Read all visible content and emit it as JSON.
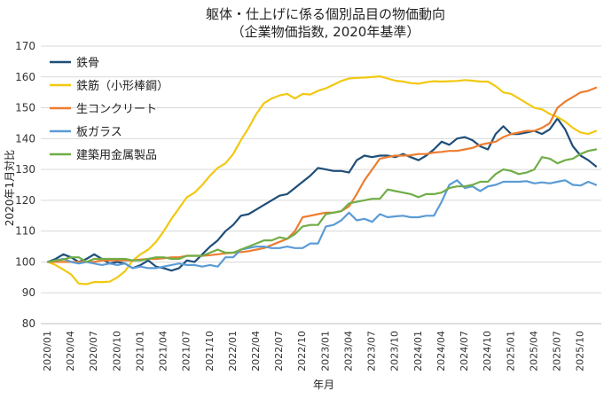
{
  "chart_data": {
    "type": "line",
    "title": "躯体・仕上げに係る個別品目の物価動向",
    "subtitle": "（企業物価指数, 2020年基準）",
    "xlabel": "年月",
    "ylabel": "2020年1月対比",
    "ylim": [
      80,
      170
    ],
    "yticks": [
      80,
      90,
      100,
      110,
      120,
      130,
      140,
      150,
      160,
      170
    ],
    "grid": "horizontal",
    "legend_position": "top-left",
    "x": [
      "2020/01",
      "2020/02",
      "2020/03",
      "2020/04",
      "2020/05",
      "2020/06",
      "2020/07",
      "2020/08",
      "2020/09",
      "2020/10",
      "2020/11",
      "2020/12",
      "2021/01",
      "2021/02",
      "2021/03",
      "2021/04",
      "2021/05",
      "2021/06",
      "2021/07",
      "2021/08",
      "2021/09",
      "2021/10",
      "2021/11",
      "2021/12",
      "2022/01",
      "2022/02",
      "2022/03",
      "2022/04",
      "2022/05",
      "2022/06",
      "2022/07",
      "2022/08",
      "2022/09",
      "2022/10",
      "2022/11",
      "2022/12",
      "2023/01",
      "2023/02",
      "2023/03",
      "2023/04",
      "2023/05",
      "2023/06",
      "2023/07",
      "2023/08",
      "2023/09",
      "2023/10",
      "2023/11",
      "2023/12",
      "2024/01",
      "2024/02",
      "2024/03",
      "2024/04",
      "2024/05",
      "2024/06",
      "2024/07",
      "2024/08",
      "2024/09",
      "2024/10",
      "2024/11",
      "2024/12",
      "2025/01",
      "2025/02",
      "2025/03",
      "2025/04",
      "2025/05",
      "2025/06",
      "2025/07",
      "2025/08",
      "2025/09",
      "2025/10",
      "2025/11",
      "2025/12"
    ],
    "xtick_labels": [
      "2020/01",
      "2020/04",
      "2020/07",
      "2020/10",
      "2021/01",
      "2021/04",
      "2021/07",
      "2021/10",
      "2022/01",
      "2022/04",
      "2022/07",
      "2022/10",
      "2023/01",
      "2023/04",
      "2023/07",
      "2023/10",
      "2024/01",
      "2024/04",
      "2024/07",
      "2024/10",
      "2025/01",
      "2025/04",
      "2025/07",
      "2025/10"
    ],
    "series": [
      {
        "name": "鉄骨",
        "color": "#1f4e79",
        "values": [
          100,
          101,
          102.5,
          101.5,
          100,
          101,
          102.5,
          101,
          99.5,
          100,
          99.5,
          98,
          99,
          100.5,
          98.5,
          98,
          97.2,
          98,
          100.5,
          100,
          102.5,
          105,
          107,
          110,
          112,
          115,
          115.5,
          117,
          118.5,
          120,
          121.5,
          122,
          124,
          126,
          128,
          130.5,
          130,
          129.5,
          129.5,
          129,
          133,
          134.5,
          134,
          134.5,
          134.5,
          134,
          135,
          134,
          133,
          134.5,
          136.5,
          139,
          138,
          140,
          140.5,
          139.5,
          137.5,
          136.5,
          141.5,
          144,
          141.5,
          141.5,
          142,
          142.5,
          141.5,
          143,
          146.5,
          143,
          137.5,
          134.5,
          133,
          131
        ]
      },
      {
        "name": "鉄筋（小形棒鋼）",
        "color": "#f2c811",
        "values": [
          100,
          99,
          97.5,
          96,
          93,
          92.8,
          93.5,
          93.5,
          93.6,
          95,
          97,
          100.5,
          102.5,
          104,
          106.5,
          110,
          114,
          117.5,
          121,
          122.5,
          125,
          128,
          130.5,
          132,
          135,
          139.5,
          143.5,
          148,
          151.5,
          153,
          154,
          154.5,
          153,
          154.5,
          154.3,
          155.5,
          156.3,
          157.5,
          158.7,
          159.5,
          159.7,
          159.8,
          160,
          160.2,
          159.5,
          158.8,
          158.5,
          158,
          157.8,
          158.3,
          158.6,
          158.5,
          158.6,
          158.7,
          159,
          158.8,
          158.5,
          158.5,
          157,
          155,
          154.5,
          153,
          151.5,
          150,
          149.5,
          148,
          147,
          145.5,
          143.5,
          142,
          141.5,
          142.5
        ]
      },
      {
        "name": "生コンクリート",
        "color": "#ed7d31",
        "values": [
          100,
          100,
          100,
          100,
          100,
          100,
          100,
          100.5,
          100.5,
          100.5,
          100.5,
          100.5,
          100.8,
          101,
          101,
          101.2,
          101.5,
          101.5,
          102,
          102,
          102,
          102.2,
          102.5,
          102.8,
          103,
          103.2,
          103.5,
          104,
          104.5,
          105.5,
          106.5,
          107.5,
          110,
          114.5,
          115,
          115.5,
          116,
          116,
          116.5,
          118,
          122,
          126.5,
          130,
          133.5,
          134,
          134.5,
          134.5,
          134.6,
          135,
          135,
          135.5,
          135.7,
          136,
          136,
          136.5,
          137,
          138,
          138.5,
          139,
          140.5,
          141.5,
          142,
          142.5,
          142.5,
          143.5,
          145,
          150,
          152,
          153.5,
          155,
          155.5,
          156.5
        ]
      },
      {
        "name": "板ガラス",
        "color": "#5b9bd5",
        "values": [
          100,
          100.5,
          101,
          100,
          99.5,
          100,
          99.5,
          99,
          99.5,
          99,
          99.5,
          98,
          98.5,
          98,
          98,
          98.5,
          99,
          99.5,
          99,
          99,
          98.5,
          99,
          98.5,
          101.5,
          101.5,
          104,
          104.5,
          105,
          105,
          104.5,
          104.5,
          105,
          104.5,
          104.5,
          106,
          106,
          111.5,
          112,
          113.5,
          116,
          113.5,
          114,
          113,
          115.5,
          114.5,
          114.8,
          115,
          114.5,
          114.5,
          115,
          115,
          119.5,
          125,
          126.5,
          124,
          124.5,
          123,
          124.5,
          125,
          126,
          126,
          126,
          126.2,
          125.5,
          125.8,
          125.5,
          126,
          126.5,
          125,
          124.8,
          126,
          125
        ]
      },
      {
        "name": "建築用金属製品",
        "color": "#70ad47",
        "values": [
          100,
          100.5,
          100.8,
          101.5,
          101.5,
          100,
          101,
          101,
          101,
          101,
          101,
          100.5,
          100.5,
          101,
          101.5,
          101.5,
          101,
          101,
          102,
          102,
          102,
          103,
          104,
          103,
          103,
          104,
          105,
          106,
          107,
          107,
          108,
          107.5,
          109,
          111.5,
          112,
          112,
          115.5,
          116,
          116.5,
          119,
          119.5,
          120,
          120.5,
          120.5,
          123.5,
          123,
          122.5,
          122,
          121,
          122,
          122,
          122.5,
          124,
          124.5,
          124.5,
          125,
          126,
          126,
          128.5,
          130,
          129.5,
          128.5,
          129,
          130,
          134,
          133.5,
          132,
          133,
          133.5,
          135,
          136,
          136.5
        ]
      }
    ]
  }
}
